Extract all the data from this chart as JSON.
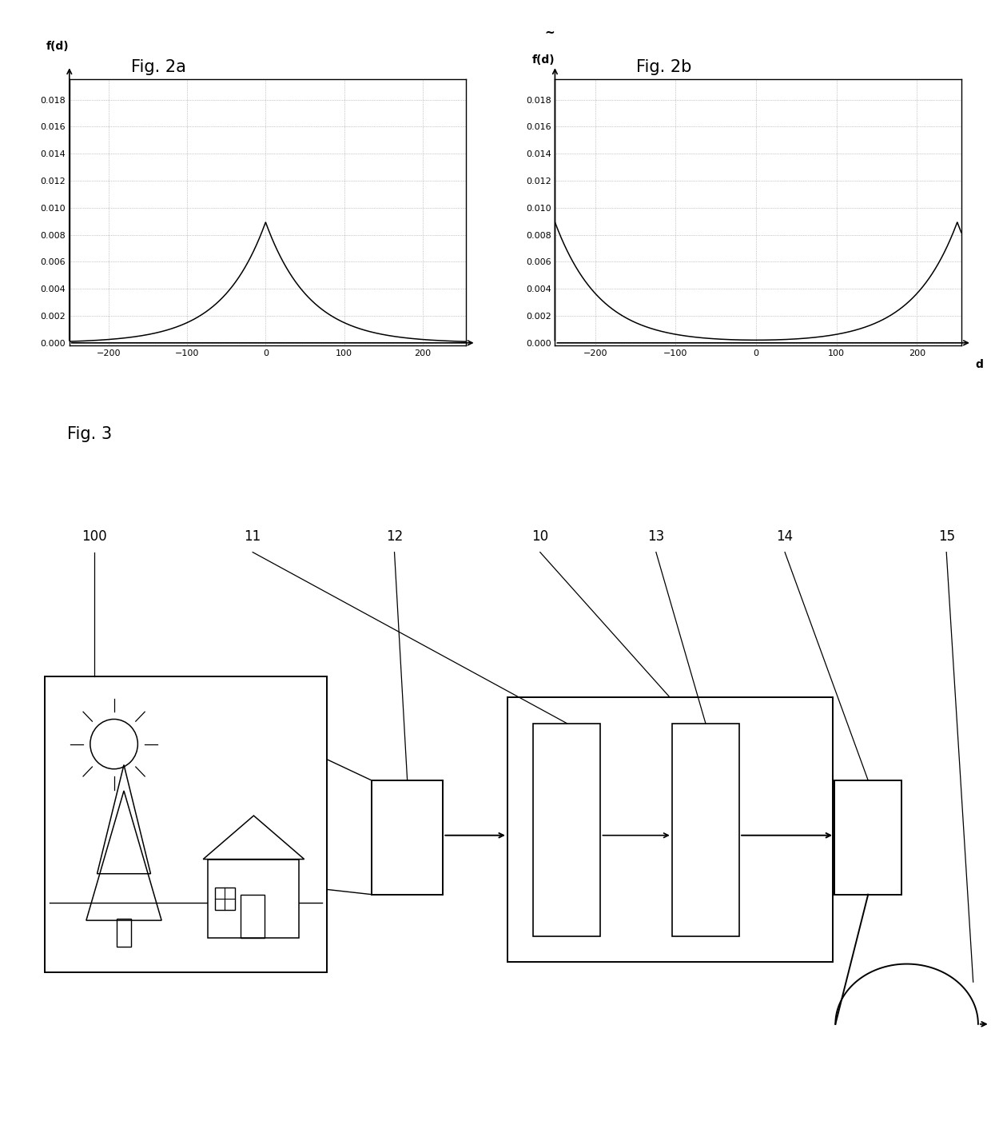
{
  "fig2a_title": "Fig. 2a",
  "fig2b_title": "Fig. 2b",
  "fig3_title": "Fig. 3",
  "fig2a_ylabel": "f(d)",
  "fig2b_ylabel": "f(d)",
  "fig2b_ylabel_tilde": "~",
  "fig2b_xlabel": "d",
  "ylim": [
    0.0,
    0.018
  ],
  "xlim": [
    -250,
    255
  ],
  "yticks": [
    0.0,
    0.002,
    0.004,
    0.006,
    0.008,
    0.01,
    0.012,
    0.014,
    0.016,
    0.018
  ],
  "xticks": [
    -200,
    -100,
    0,
    100,
    200
  ],
  "laplace_scale": 56,
  "background_color": "#ffffff",
  "curve_color": "#000000",
  "grid_color": "#999999",
  "labels": [
    "100",
    "11",
    "12",
    "10",
    "13",
    "14",
    "15"
  ]
}
